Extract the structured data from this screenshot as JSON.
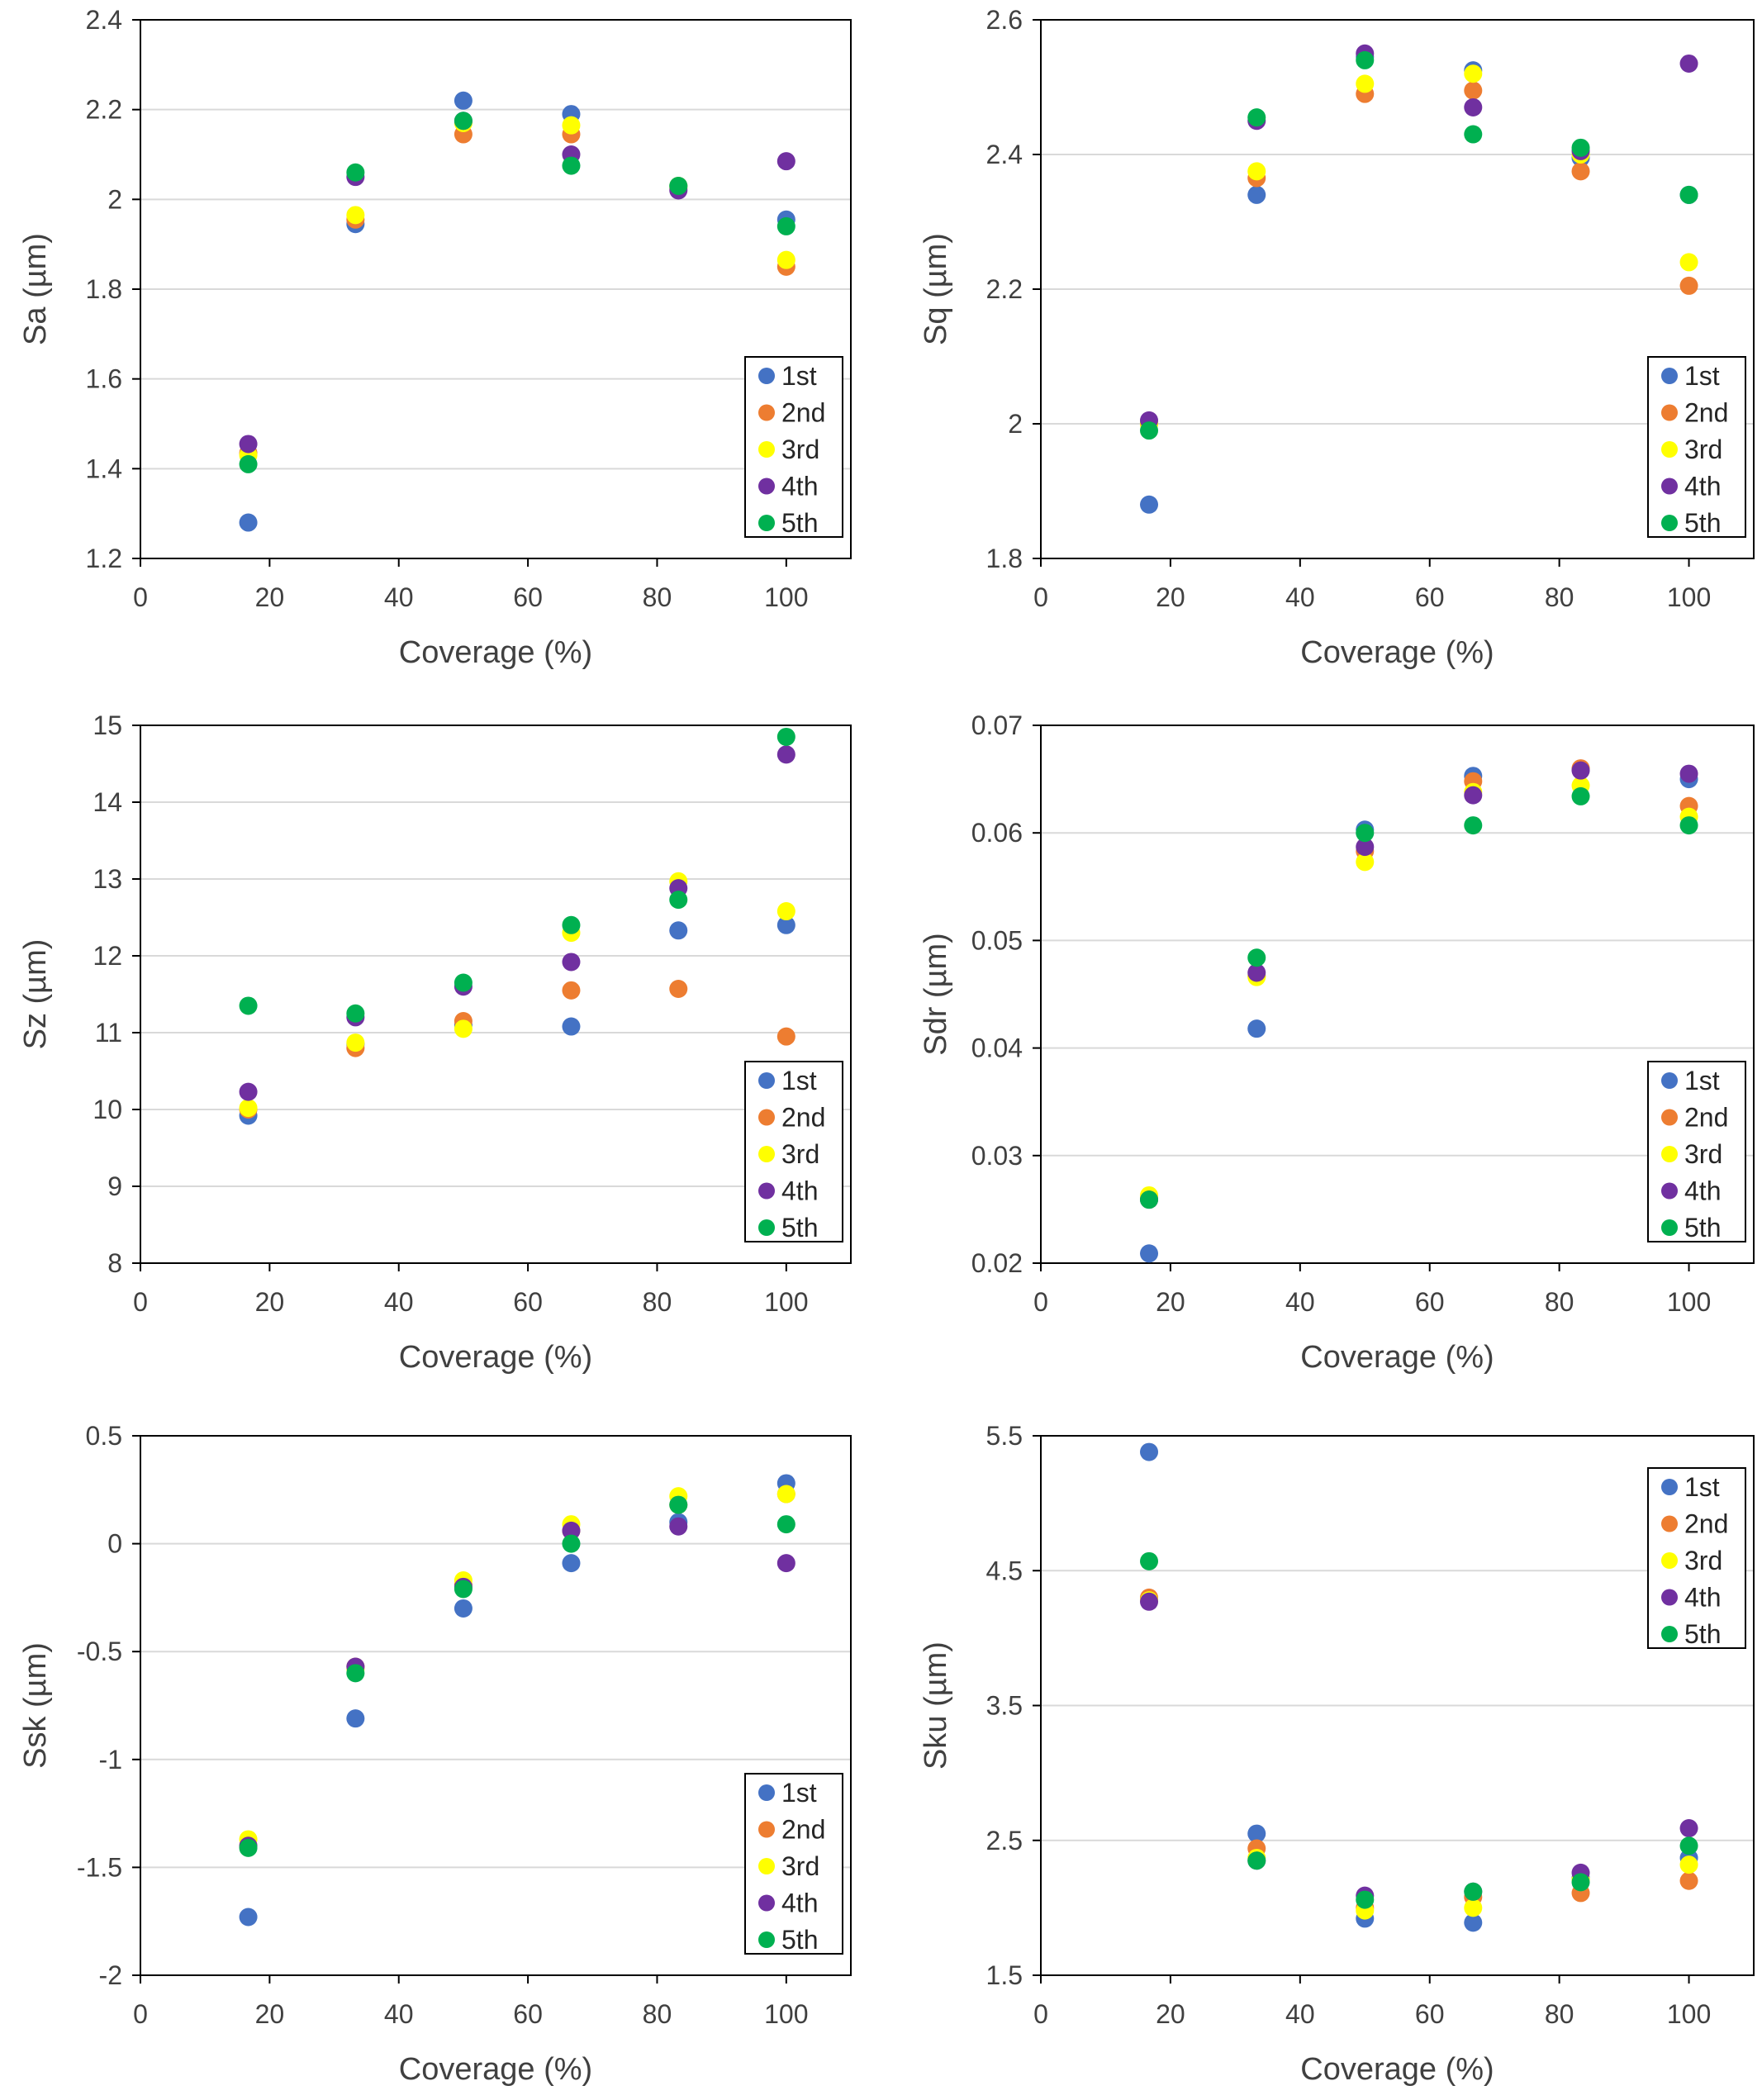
{
  "colors": {
    "series": [
      "#4472c4",
      "#ed7d31",
      "#ffff00",
      "#7030a0",
      "#00b050"
    ],
    "grid": "#d9d9d9",
    "axis": "#000000",
    "text": "#404040"
  },
  "chart_data": [
    {
      "type": "scatter",
      "id": "sa",
      "xlabel": "Coverage (%)",
      "ylabel": "Sa (µm)",
      "xlim": [
        0,
        110
      ],
      "ylim": [
        1.2,
        2.4
      ],
      "xticks": [
        0,
        20,
        40,
        60,
        80,
        100
      ],
      "xtick_labels": [
        "0",
        "20",
        "40",
        "60",
        "80",
        "100"
      ],
      "yticks": [
        1.2,
        1.4,
        1.6,
        1.8,
        2.0,
        2.2,
        2.4
      ],
      "ytick_labels": [
        "1.2",
        "1.4",
        "1.6",
        "1.8",
        "2",
        "2.2",
        "2.4"
      ],
      "legend_position": "bottom-right",
      "x": [
        16.7,
        33.3,
        50,
        66.7,
        83.3,
        100
      ],
      "series": [
        {
          "name": "1st",
          "values": [
            1.28,
            1.945,
            2.22,
            2.19,
            2.03,
            1.955
          ]
        },
        {
          "name": "2nd",
          "values": [
            1.435,
            1.955,
            2.145,
            2.145,
            2.025,
            1.85
          ]
        },
        {
          "name": "3rd",
          "values": [
            1.43,
            1.965,
            2.17,
            2.165,
            2.03,
            1.865
          ]
        },
        {
          "name": "4th",
          "values": [
            1.455,
            2.05,
            2.175,
            2.1,
            2.02,
            2.085
          ]
        },
        {
          "name": "5th",
          "values": [
            1.41,
            2.06,
            2.175,
            2.075,
            2.03,
            1.94
          ]
        }
      ]
    },
    {
      "type": "scatter",
      "id": "sq",
      "xlabel": "Coverage (%)",
      "ylabel": "Sq (µm)",
      "xlim": [
        0,
        110
      ],
      "ylim": [
        1.8,
        2.6
      ],
      "xticks": [
        0,
        20,
        40,
        60,
        80,
        100
      ],
      "xtick_labels": [
        "0",
        "20",
        "40",
        "60",
        "80",
        "100"
      ],
      "yticks": [
        1.8,
        2.0,
        2.2,
        2.4,
        2.6
      ],
      "ytick_labels": [
        "1.8",
        "2",
        "2.2",
        "2.4",
        "2.6"
      ],
      "legend_position": "bottom-right",
      "x": [
        16.7,
        33.3,
        50,
        66.7,
        83.3,
        100
      ],
      "series": [
        {
          "name": "1st",
          "values": [
            1.88,
            2.34,
            2.545,
            2.525,
            2.395,
            2.34
          ]
        },
        {
          "name": "2nd",
          "values": [
            2.0,
            2.365,
            2.49,
            2.495,
            2.375,
            2.205
          ]
        },
        {
          "name": "3rd",
          "values": [
            2.0,
            2.375,
            2.505,
            2.52,
            2.4,
            2.24
          ]
        },
        {
          "name": "4th",
          "values": [
            2.005,
            2.45,
            2.55,
            2.47,
            2.405,
            2.535
          ]
        },
        {
          "name": "5th",
          "values": [
            1.99,
            2.455,
            2.54,
            2.43,
            2.41,
            2.34
          ]
        }
      ]
    },
    {
      "type": "scatter",
      "id": "sz",
      "xlabel": "Coverage (%)",
      "ylabel": "Sz (µm)",
      "xlim": [
        0,
        110
      ],
      "ylim": [
        8,
        15
      ],
      "xticks": [
        0,
        20,
        40,
        60,
        80,
        100
      ],
      "xtick_labels": [
        "0",
        "20",
        "40",
        "60",
        "80",
        "100"
      ],
      "yticks": [
        8,
        9,
        10,
        11,
        12,
        13,
        14,
        15
      ],
      "ytick_labels": [
        "8",
        "9",
        "10",
        "11",
        "12",
        "13",
        "14",
        "15"
      ],
      "legend_position": "bottom-right",
      "x": [
        16.7,
        33.3,
        50,
        66.7,
        83.3,
        100
      ],
      "series": [
        {
          "name": "1st",
          "values": [
            9.92,
            10.85,
            11.1,
            11.08,
            12.33,
            12.4
          ]
        },
        {
          "name": "2nd",
          "values": [
            10.0,
            10.8,
            11.15,
            11.55,
            11.57,
            10.95
          ]
        },
        {
          "name": "3rd",
          "values": [
            10.02,
            10.87,
            11.05,
            12.3,
            12.97,
            12.58
          ]
        },
        {
          "name": "4th",
          "values": [
            10.23,
            11.2,
            11.6,
            11.92,
            12.88,
            14.62
          ]
        },
        {
          "name": "5th",
          "values": [
            11.35,
            11.25,
            11.65,
            12.4,
            12.73,
            14.85
          ]
        }
      ]
    },
    {
      "type": "scatter",
      "id": "sdr",
      "xlabel": "Coverage (%)",
      "ylabel": "Sdr (µm)",
      "xlim": [
        0,
        110
      ],
      "ylim": [
        0.02,
        0.07
      ],
      "xticks": [
        0,
        20,
        40,
        60,
        80,
        100
      ],
      "xtick_labels": [
        "0",
        "20",
        "40",
        "60",
        "80",
        "100"
      ],
      "yticks": [
        0.02,
        0.03,
        0.04,
        0.05,
        0.06,
        0.07
      ],
      "ytick_labels": [
        "0.02",
        "0.03",
        "0.04",
        "0.05",
        "0.06",
        "0.07"
      ],
      "legend_position": "bottom-right",
      "x": [
        16.7,
        33.3,
        50,
        66.7,
        83.3,
        100
      ],
      "series": [
        {
          "name": "1st",
          "values": [
            0.0209,
            0.0418,
            0.0603,
            0.0653,
            0.0659,
            0.065
          ]
        },
        {
          "name": "2nd",
          "values": [
            0.026,
            0.0467,
            0.0583,
            0.0648,
            0.066,
            0.0625
          ]
        },
        {
          "name": "3rd",
          "values": [
            0.0263,
            0.0466,
            0.0573,
            0.0638,
            0.0644,
            0.0615
          ]
        },
        {
          "name": "4th",
          "values": [
            0.0259,
            0.047,
            0.0587,
            0.0635,
            0.0658,
            0.0655
          ]
        },
        {
          "name": "5th",
          "values": [
            0.0259,
            0.0484,
            0.06,
            0.0607,
            0.0634,
            0.0607
          ]
        }
      ]
    },
    {
      "type": "scatter",
      "id": "ssk",
      "xlabel": "Coverage (%)",
      "ylabel": "Ssk (µm)",
      "xlim": [
        0,
        110
      ],
      "ylim": [
        -2,
        0.5
      ],
      "xticks": [
        0,
        20,
        40,
        60,
        80,
        100
      ],
      "xtick_labels": [
        "0",
        "20",
        "40",
        "60",
        "80",
        "100"
      ],
      "yticks": [
        -2,
        -1.5,
        -1,
        -0.5,
        0,
        0.5
      ],
      "ytick_labels": [
        "-2",
        "-1.5",
        "-1",
        "-0.5",
        "0",
        "0.5"
      ],
      "legend_position": "bottom-right",
      "x": [
        16.7,
        33.3,
        50,
        66.7,
        83.3,
        100
      ],
      "series": [
        {
          "name": "1st",
          "values": [
            -1.73,
            -0.81,
            -0.3,
            -0.09,
            0.1,
            0.28
          ]
        },
        {
          "name": "2nd",
          "values": [
            -1.4,
            -0.57,
            -0.19,
            0.06,
            0.18,
            0.23
          ]
        },
        {
          "name": "3rd",
          "values": [
            -1.37,
            -0.58,
            -0.17,
            0.09,
            0.22,
            0.23
          ]
        },
        {
          "name": "4th",
          "values": [
            -1.4,
            -0.57,
            -0.2,
            0.06,
            0.08,
            -0.09
          ]
        },
        {
          "name": "5th",
          "values": [
            -1.41,
            -0.6,
            -0.21,
            0.0,
            0.18,
            0.09
          ]
        }
      ]
    },
    {
      "type": "scatter",
      "id": "sku",
      "xlabel": "Coverage (%)",
      "ylabel": "Sku (µm)",
      "xlim": [
        0,
        110
      ],
      "ylim": [
        1.5,
        5.5
      ],
      "xticks": [
        0,
        20,
        40,
        60,
        80,
        100
      ],
      "xtick_labels": [
        "0",
        "20",
        "40",
        "60",
        "80",
        "100"
      ],
      "yticks": [
        1.5,
        2.5,
        3.5,
        4.5,
        5.5
      ],
      "ytick_labels": [
        "1.5",
        "2.5",
        "3.5",
        "4.5",
        "5.5"
      ],
      "legend_position": "top-right",
      "x": [
        16.7,
        33.3,
        50,
        66.7,
        83.3,
        100
      ],
      "series": [
        {
          "name": "1st",
          "values": [
            5.38,
            2.55,
            1.92,
            1.89,
            2.22,
            2.37
          ]
        },
        {
          "name": "2nd",
          "values": [
            4.3,
            2.44,
            2.0,
            2.08,
            2.11,
            2.2
          ]
        },
        {
          "name": "3rd",
          "values": [
            4.28,
            2.37,
            1.98,
            2.0,
            2.21,
            2.32
          ]
        },
        {
          "name": "4th",
          "values": [
            4.27,
            2.35,
            2.09,
            2.12,
            2.26,
            2.59
          ]
        },
        {
          "name": "5th",
          "values": [
            4.57,
            2.35,
            2.06,
            2.12,
            2.19,
            2.46
          ]
        }
      ]
    }
  ]
}
